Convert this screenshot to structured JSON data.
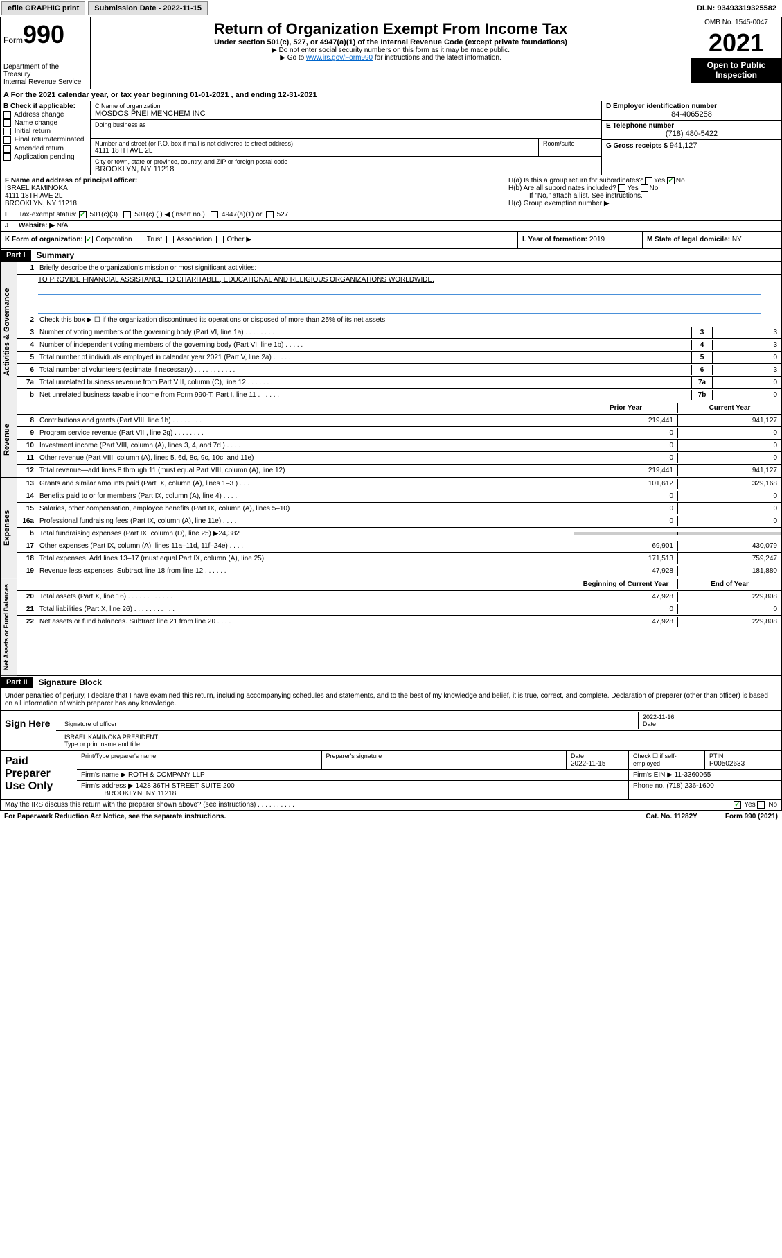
{
  "topbar": {
    "efile": "efile GRAPHIC print",
    "sub_label": "Submission Date - 2022-11-15",
    "dln": "DLN: 93493319325582"
  },
  "header": {
    "form_word": "Form",
    "form_num": "990",
    "dept": "Department of the Treasury\nInternal Revenue Service",
    "title": "Return of Organization Exempt From Income Tax",
    "subtitle": "Under section 501(c), 527, or 4947(a)(1) of the Internal Revenue Code (except private foundations)",
    "note1": "▶ Do not enter social security numbers on this form as it may be made public.",
    "note2_pre": "▶ Go to ",
    "note2_link": "www.irs.gov/Form990",
    "note2_post": " for instructions and the latest information.",
    "omb": "OMB No. 1545-0047",
    "year": "2021",
    "inspect": "Open to Public Inspection"
  },
  "section_a": "A For the 2021 calendar year, or tax year beginning 01-01-2021   , and ending 12-31-2021",
  "col_b": {
    "hdr": "B Check if applicable:",
    "items": [
      "Address change",
      "Name change",
      "Initial return",
      "Final return/terminated",
      "Amended return",
      "Application pending"
    ]
  },
  "org": {
    "c_label": "C Name of organization",
    "name": "MOSDOS PNEI MENCHEM INC",
    "dba_label": "Doing business as",
    "addr_label": "Number and street (or P.O. box if mail is not delivered to street address)",
    "suite_label": "Room/suite",
    "addr": "4111 18TH AVE 2L",
    "city_label": "City or town, state or province, country, and ZIP or foreign postal code",
    "city": "BROOKLYN, NY  11218"
  },
  "right": {
    "d_label": "D Employer identification number",
    "ein": "84-4065258",
    "e_label": "E Telephone number",
    "phone": "(718) 480-5422",
    "g_label": "G Gross receipts $",
    "gross": "941,127"
  },
  "f": {
    "label": "F Name and address of principal officer:",
    "name": "ISRAEL KAMINOKA",
    "addr1": "4111 18TH AVE 2L",
    "addr2": "BROOKLYN, NY  11218"
  },
  "h": {
    "a": "H(a)  Is this a group return for subordinates?",
    "b": "H(b)  Are all subordinates included?",
    "b_note": "If \"No,\" attach a list. See instructions.",
    "c": "H(c)  Group exemption number ▶"
  },
  "i": {
    "label": "Tax-exempt status:",
    "opts": [
      "501(c)(3)",
      "501(c) (  ) ◀ (insert no.)",
      "4947(a)(1) or",
      "527"
    ]
  },
  "j": {
    "label": "Website: ▶",
    "val": "N/A"
  },
  "k": {
    "label": "K Form of organization:",
    "opts": [
      "Corporation",
      "Trust",
      "Association",
      "Other ▶"
    ]
  },
  "l": {
    "label": "L Year of formation:",
    "val": "2019"
  },
  "m": {
    "label": "M State of legal domicile:",
    "val": "NY"
  },
  "part1": {
    "hdr": "Part I",
    "title": "Summary",
    "tab_gov": "Activities & Governance",
    "tab_rev": "Revenue",
    "tab_exp": "Expenses",
    "tab_net": "Net Assets or Fund Balances",
    "q1": "Briefly describe the organization's mission or most significant activities:",
    "mission": "TO PROVIDE FINANCIAL ASSISTANCE TO CHARITABLE, EDUCATIONAL AND RELIGIOUS ORGANIZATIONS WORLDWIDE.",
    "q2": "Check this box ▶ ☐  if the organization discontinued its operations or disposed of more than 25% of its net assets.",
    "lines_gov": [
      {
        "n": "3",
        "d": "Number of voting members of the governing body (Part VI, line 1a)   .   .   .   .   .   .   .   .",
        "b": "3",
        "v": "3"
      },
      {
        "n": "4",
        "d": "Number of independent voting members of the governing body (Part VI, line 1b)   .   .   .   .   .",
        "b": "4",
        "v": "3"
      },
      {
        "n": "5",
        "d": "Total number of individuals employed in calendar year 2021 (Part V, line 2a)   .   .   .   .   .",
        "b": "5",
        "v": "0"
      },
      {
        "n": "6",
        "d": "Total number of volunteers (estimate if necessary)   .   .   .   .   .   .   .   .   .   .   .   .",
        "b": "6",
        "v": "3"
      },
      {
        "n": "7a",
        "d": "Total unrelated business revenue from Part VIII, column (C), line 12   .   .   .   .   .   .   .",
        "b": "7a",
        "v": "0"
      },
      {
        "n": "b",
        "d": "Net unrelated business taxable income from Form 990-T, Part I, line 11   .   .   .   .   .   .",
        "b": "7b",
        "v": "0"
      }
    ],
    "prior_hdr": "Prior Year",
    "curr_hdr": "Current Year",
    "lines_rev": [
      {
        "n": "8",
        "d": "Contributions and grants (Part VIII, line 1h)   .   .   .   .   .   .   .   .",
        "p": "219,441",
        "c": "941,127"
      },
      {
        "n": "9",
        "d": "Program service revenue (Part VIII, line 2g)   .   .   .   .   .   .   .   .",
        "p": "0",
        "c": "0"
      },
      {
        "n": "10",
        "d": "Investment income (Part VIII, column (A), lines 3, 4, and 7d )   .   .   .   .",
        "p": "0",
        "c": "0"
      },
      {
        "n": "11",
        "d": "Other revenue (Part VIII, column (A), lines 5, 6d, 8c, 9c, 10c, and 11e)",
        "p": "0",
        "c": "0"
      },
      {
        "n": "12",
        "d": "Total revenue—add lines 8 through 11 (must equal Part VIII, column (A), line 12)",
        "p": "219,441",
        "c": "941,127"
      }
    ],
    "lines_exp": [
      {
        "n": "13",
        "d": "Grants and similar amounts paid (Part IX, column (A), lines 1–3 )   .   .   .",
        "p": "101,612",
        "c": "329,168"
      },
      {
        "n": "14",
        "d": "Benefits paid to or for members (Part IX, column (A), line 4)   .   .   .   .",
        "p": "0",
        "c": "0"
      },
      {
        "n": "15",
        "d": "Salaries, other compensation, employee benefits (Part IX, column (A), lines 5–10)",
        "p": "0",
        "c": "0"
      },
      {
        "n": "16a",
        "d": "Professional fundraising fees (Part IX, column (A), line 11e)   .   .   .   .",
        "p": "0",
        "c": "0"
      },
      {
        "n": "b",
        "d": "Total fundraising expenses (Part IX, column (D), line 25) ▶24,382",
        "p": "",
        "c": "",
        "shaded": true
      },
      {
        "n": "17",
        "d": "Other expenses (Part IX, column (A), lines 11a–11d, 11f–24e)   .   .   .   .",
        "p": "69,901",
        "c": "430,079"
      },
      {
        "n": "18",
        "d": "Total expenses. Add lines 13–17 (must equal Part IX, column (A), line 25)",
        "p": "171,513",
        "c": "759,247"
      },
      {
        "n": "19",
        "d": "Revenue less expenses. Subtract line 18 from line 12   .   .   .   .   .   .",
        "p": "47,928",
        "c": "181,880"
      }
    ],
    "begin_hdr": "Beginning of Current Year",
    "end_hdr": "End of Year",
    "lines_net": [
      {
        "n": "20",
        "d": "Total assets (Part X, line 16)   .   .   .   .   .   .   .   .   .   .   .   .",
        "p": "47,928",
        "c": "229,808"
      },
      {
        "n": "21",
        "d": "Total liabilities (Part X, line 26)   .   .   .   .   .   .   .   .   .   .   .",
        "p": "0",
        "c": "0"
      },
      {
        "n": "22",
        "d": "Net assets or fund balances. Subtract line 21 from line 20   .   .   .   .",
        "p": "47,928",
        "c": "229,808"
      }
    ]
  },
  "part2": {
    "hdr": "Part II",
    "title": "Signature Block",
    "decl": "Under penalties of perjury, I declare that I have examined this return, including accompanying schedules and statements, and to the best of my knowledge and belief, it is true, correct, and complete. Declaration of preparer (other than officer) is based on all information of which preparer has any knowledge.",
    "sign_here": "Sign Here",
    "sig_officer": "Signature of officer",
    "date_lbl": "Date",
    "sig_date": "2022-11-16",
    "officer_name": "ISRAEL KAMINOKA  PRESIDENT",
    "type_name": "Type or print name and title",
    "paid": "Paid Preparer Use Only",
    "prep_name_lbl": "Print/Type preparer's name",
    "prep_sig_lbl": "Preparer's signature",
    "prep_date_lbl": "Date",
    "prep_date": "2022-11-15",
    "check_lbl": "Check ☐ if self-employed",
    "ptin_lbl": "PTIN",
    "ptin": "P00502633",
    "firm_name_lbl": "Firm's name    ▶",
    "firm_name": "ROTH & COMPANY LLP",
    "firm_ein_lbl": "Firm's EIN ▶",
    "firm_ein": "11-3360065",
    "firm_addr_lbl": "Firm's address ▶",
    "firm_addr1": "1428 36TH STREET SUITE 200",
    "firm_addr2": "BROOKLYN, NY  11218",
    "firm_phone_lbl": "Phone no.",
    "firm_phone": "(718) 236-1600",
    "discuss": "May the IRS discuss this return with the preparer shown above? (see instructions)   .   .   .   .   .   .   .   .   .   ."
  },
  "footer": {
    "pra": "For Paperwork Reduction Act Notice, see the separate instructions.",
    "cat": "Cat. No. 11282Y",
    "form": "Form 990 (2021)"
  }
}
